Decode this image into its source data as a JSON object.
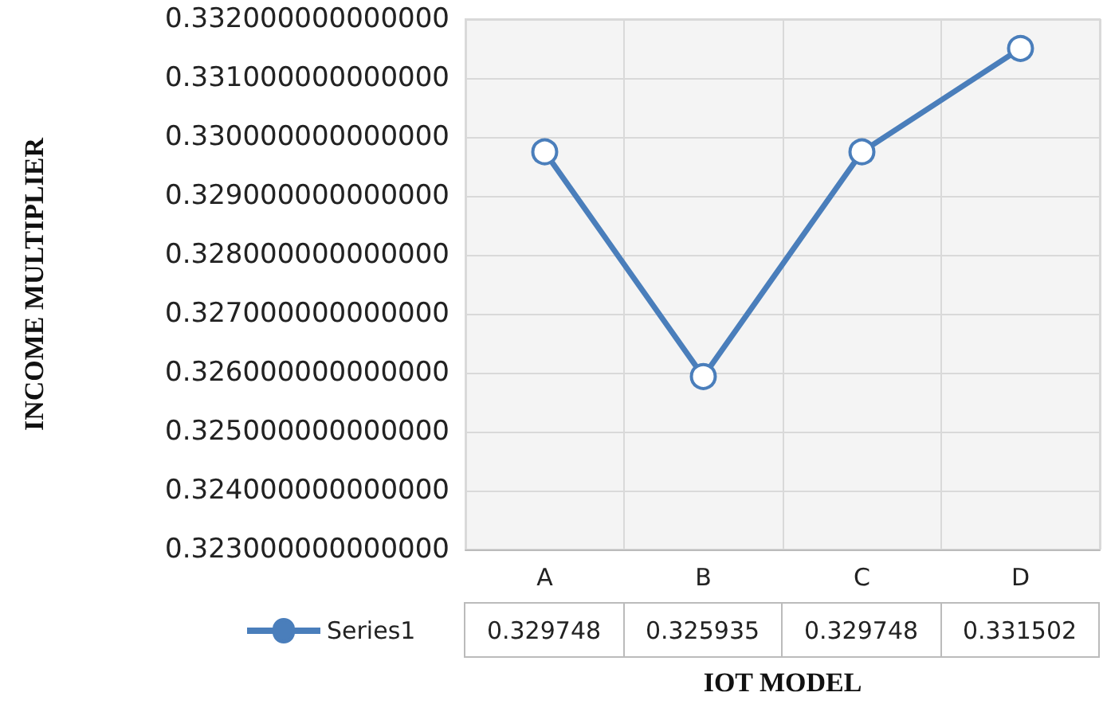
{
  "chart_data": {
    "type": "line",
    "xlabel": "IOT MODEL",
    "ylabel": "INCOME MULTIPLIER",
    "categories": [
      "A",
      "B",
      "C",
      "D"
    ],
    "series": [
      {
        "name": "Series1",
        "color": "#4a7ebb",
        "values": [
          0.329748,
          0.325935,
          0.329748,
          0.331502
        ],
        "value_labels": [
          "0.329748",
          "0.325935",
          "0.329748",
          "0.331502"
        ]
      }
    ],
    "ylim": [
      0.323,
      0.332
    ],
    "yticks": [
      {
        "value": 0.323,
        "label": "0.323000000000000"
      },
      {
        "value": 0.324,
        "label": "0.324000000000000"
      },
      {
        "value": 0.325,
        "label": "0.325000000000000"
      },
      {
        "value": 0.326,
        "label": "0.326000000000000"
      },
      {
        "value": 0.327,
        "label": "0.327000000000000"
      },
      {
        "value": 0.328,
        "label": "0.328000000000000"
      },
      {
        "value": 0.329,
        "label": "0.329000000000000"
      },
      {
        "value": 0.33,
        "label": "0.330000000000000"
      },
      {
        "value": 0.331,
        "label": "0.331000000000000"
      },
      {
        "value": 0.332,
        "label": "0.332000000000000"
      }
    ],
    "grid": true,
    "legend": "bottom",
    "marker": "circle",
    "line_style": "solid"
  }
}
